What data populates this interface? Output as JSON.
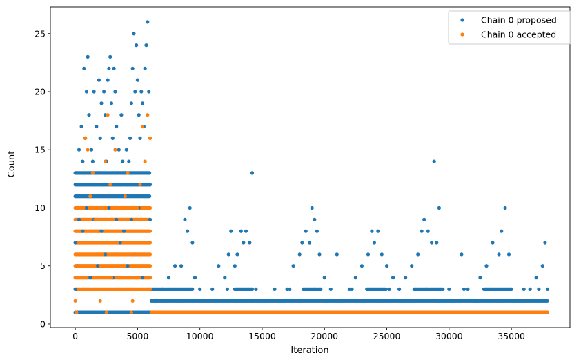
{
  "chart_data": {
    "type": "scatter",
    "title": "",
    "xlabel": "Iteration",
    "ylabel": "Count",
    "xlim": [
      -2000,
      39700
    ],
    "ylim": [
      -0.3,
      27.3
    ],
    "xticks": [
      0,
      5000,
      10000,
      15000,
      20000,
      25000,
      30000,
      35000
    ],
    "yticks": [
      0,
      5,
      10,
      15,
      20,
      25
    ],
    "legend_position": "top-right",
    "series": [
      {
        "name": "Chain 0 proposed",
        "color": "#1f77b4",
        "points": [
          [
            0,
            7
          ],
          [
            100,
            13
          ],
          [
            200,
            5
          ],
          [
            300,
            15
          ],
          [
            400,
            12
          ],
          [
            500,
            17
          ],
          [
            600,
            14
          ],
          [
            700,
            22
          ],
          [
            800,
            16
          ],
          [
            900,
            20
          ],
          [
            1000,
            23
          ],
          [
            1100,
            18
          ],
          [
            1200,
            11
          ],
          [
            1300,
            15
          ],
          [
            1400,
            14
          ],
          [
            1500,
            20
          ],
          [
            1600,
            12
          ],
          [
            1700,
            17
          ],
          [
            1800,
            13
          ],
          [
            1900,
            21
          ],
          [
            2000,
            16
          ],
          [
            2100,
            19
          ],
          [
            2200,
            12
          ],
          [
            2300,
            20
          ],
          [
            2400,
            18
          ],
          [
            2500,
            14
          ],
          [
            2600,
            21
          ],
          [
            2700,
            22
          ],
          [
            2800,
            23
          ],
          [
            2900,
            19
          ],
          [
            3000,
            16
          ],
          [
            3100,
            22
          ],
          [
            3200,
            20
          ],
          [
            3300,
            17
          ],
          [
            3400,
            13
          ],
          [
            3500,
            15
          ],
          [
            3600,
            12
          ],
          [
            3700,
            18
          ],
          [
            3800,
            14
          ],
          [
            3900,
            11
          ],
          [
            4000,
            13
          ],
          [
            4100,
            15
          ],
          [
            4200,
            12
          ],
          [
            4300,
            14
          ],
          [
            4400,
            16
          ],
          [
            4500,
            19
          ],
          [
            4600,
            22
          ],
          [
            4700,
            25
          ],
          [
            4800,
            20
          ],
          [
            4900,
            24
          ],
          [
            5000,
            21
          ],
          [
            5100,
            18
          ],
          [
            5200,
            16
          ],
          [
            5300,
            20
          ],
          [
            5400,
            19
          ],
          [
            5500,
            17
          ],
          [
            5600,
            22
          ],
          [
            5700,
            24
          ],
          [
            5800,
            26
          ],
          [
            5900,
            20
          ],
          [
            6000,
            12
          ],
          [
            0,
            3
          ],
          [
            300,
            9
          ],
          [
            600,
            8
          ],
          [
            900,
            10
          ],
          [
            1200,
            4
          ],
          [
            1500,
            9
          ],
          [
            1800,
            5
          ],
          [
            2100,
            8
          ],
          [
            2400,
            6
          ],
          [
            2700,
            10
          ],
          [
            3000,
            4
          ],
          [
            3300,
            9
          ],
          [
            3600,
            7
          ],
          [
            3900,
            8
          ],
          [
            4200,
            5
          ],
          [
            4500,
            9
          ],
          [
            4800,
            6
          ],
          [
            5100,
            10
          ],
          [
            5400,
            4
          ],
          [
            5700,
            11
          ],
          [
            6000,
            9
          ],
          [
            6500,
            2
          ],
          [
            7000,
            3
          ],
          [
            7500,
            4
          ],
          [
            8000,
            5
          ],
          [
            8500,
            5
          ],
          [
            8800,
            9
          ],
          [
            9000,
            8
          ],
          [
            9200,
            10
          ],
          [
            9400,
            7
          ],
          [
            9600,
            4
          ],
          [
            10000,
            3
          ],
          [
            10500,
            2
          ],
          [
            11000,
            3
          ],
          [
            11500,
            5
          ],
          [
            12000,
            4
          ],
          [
            12300,
            6
          ],
          [
            12500,
            8
          ],
          [
            12800,
            5
          ],
          [
            13000,
            6
          ],
          [
            13300,
            8
          ],
          [
            13500,
            7
          ],
          [
            13700,
            8
          ],
          [
            14000,
            7
          ],
          [
            14200,
            13
          ],
          [
            14500,
            3
          ],
          [
            15000,
            2
          ],
          [
            15500,
            2
          ],
          [
            16000,
            3
          ],
          [
            16500,
            2
          ],
          [
            17000,
            3
          ],
          [
            17500,
            5
          ],
          [
            18000,
            6
          ],
          [
            18200,
            7
          ],
          [
            18500,
            8
          ],
          [
            18800,
            7
          ],
          [
            19000,
            10
          ],
          [
            19200,
            9
          ],
          [
            19400,
            8
          ],
          [
            19600,
            6
          ],
          [
            20000,
            4
          ],
          [
            20500,
            3
          ],
          [
            21000,
            6
          ],
          [
            21500,
            2
          ],
          [
            22000,
            3
          ],
          [
            22500,
            4
          ],
          [
            23000,
            5
          ],
          [
            23500,
            6
          ],
          [
            23800,
            8
          ],
          [
            24000,
            7
          ],
          [
            24300,
            8
          ],
          [
            24600,
            6
          ],
          [
            25000,
            5
          ],
          [
            25500,
            4
          ],
          [
            26000,
            3
          ],
          [
            26500,
            4
          ],
          [
            27000,
            5
          ],
          [
            27500,
            6
          ],
          [
            27800,
            8
          ],
          [
            28000,
            9
          ],
          [
            28300,
            8
          ],
          [
            28600,
            7
          ],
          [
            28800,
            14
          ],
          [
            29000,
            7
          ],
          [
            29200,
            10
          ],
          [
            29500,
            3
          ],
          [
            30000,
            3
          ],
          [
            30500,
            2
          ],
          [
            31000,
            6
          ],
          [
            31500,
            3
          ],
          [
            32000,
            2
          ],
          [
            32500,
            4
          ],
          [
            33000,
            5
          ],
          [
            33500,
            7
          ],
          [
            34000,
            6
          ],
          [
            34200,
            8
          ],
          [
            34500,
            10
          ],
          [
            34800,
            6
          ],
          [
            35000,
            3
          ],
          [
            35500,
            2
          ],
          [
            36000,
            3
          ],
          [
            36500,
            3
          ],
          [
            37000,
            4
          ],
          [
            37500,
            5
          ],
          [
            37700,
            7
          ],
          [
            37900,
            3
          ],
          [
            7200,
            2
          ],
          [
            8200,
            2
          ],
          [
            9200,
            3
          ],
          [
            10200,
            2
          ],
          [
            11200,
            2
          ],
          [
            12200,
            3
          ],
          [
            13200,
            2
          ],
          [
            14200,
            2
          ],
          [
            15200,
            2
          ],
          [
            16200,
            2
          ],
          [
            17200,
            3
          ],
          [
            18200,
            2
          ],
          [
            19200,
            3
          ],
          [
            20200,
            2
          ],
          [
            21200,
            2
          ],
          [
            22200,
            3
          ],
          [
            23200,
            2
          ],
          [
            24200,
            2
          ],
          [
            25200,
            3
          ],
          [
            26200,
            2
          ],
          [
            27200,
            2
          ],
          [
            28200,
            3
          ],
          [
            29200,
            2
          ],
          [
            30200,
            2
          ],
          [
            31200,
            3
          ],
          [
            32200,
            2
          ],
          [
            33200,
            3
          ],
          [
            34200,
            2
          ],
          [
            35200,
            2
          ],
          [
            36200,
            2
          ],
          [
            37200,
            3
          ]
        ]
      },
      {
        "name": "Chain 0 accepted",
        "color": "#ff7f0e",
        "points": [
          [
            0,
            2
          ],
          [
            200,
            5
          ],
          [
            400,
            7
          ],
          [
            600,
            10
          ],
          [
            800,
            16
          ],
          [
            1000,
            15
          ],
          [
            1200,
            11
          ],
          [
            1400,
            13
          ],
          [
            1600,
            9
          ],
          [
            1800,
            8
          ],
          [
            2000,
            2
          ],
          [
            2200,
            6
          ],
          [
            2400,
            14
          ],
          [
            2600,
            18
          ],
          [
            2800,
            12
          ],
          [
            3000,
            10
          ],
          [
            3200,
            15
          ],
          [
            3400,
            7
          ],
          [
            3600,
            4
          ],
          [
            3800,
            9
          ],
          [
            4000,
            11
          ],
          [
            4200,
            13
          ],
          [
            4400,
            8
          ],
          [
            4600,
            2
          ],
          [
            4800,
            6
          ],
          [
            5000,
            10
          ],
          [
            5200,
            12
          ],
          [
            5400,
            17
          ],
          [
            5600,
            14
          ],
          [
            5800,
            18
          ],
          [
            6000,
            16
          ],
          [
            100,
            1
          ],
          [
            500,
            3
          ],
          [
            900,
            4
          ],
          [
            1300,
            5
          ],
          [
            1700,
            6
          ],
          [
            2100,
            3
          ],
          [
            2500,
            1
          ],
          [
            2900,
            4
          ],
          [
            3300,
            6
          ],
          [
            3700,
            5
          ],
          [
            4100,
            3
          ],
          [
            4500,
            1
          ],
          [
            4900,
            4
          ],
          [
            5300,
            6
          ],
          [
            5700,
            8
          ],
          [
            6000,
            3
          ]
        ]
      }
    ],
    "dense_bands": [
      {
        "series": 0,
        "y": 1,
        "x_start": 0,
        "x_end": 37900
      },
      {
        "series": 0,
        "y": 2,
        "x_start": 6100,
        "x_end": 37900
      },
      {
        "series": 0,
        "y": 3,
        "x_start": 6100,
        "x_end": 9400
      },
      {
        "series": 0,
        "y": 3,
        "x_start": 12800,
        "x_end": 14200
      },
      {
        "series": 0,
        "y": 3,
        "x_start": 18300,
        "x_end": 19700
      },
      {
        "series": 0,
        "y": 3,
        "x_start": 23400,
        "x_end": 25000
      },
      {
        "series": 0,
        "y": 3,
        "x_start": 27200,
        "x_end": 29400
      },
      {
        "series": 0,
        "y": 3,
        "x_start": 32800,
        "x_end": 35000
      },
      {
        "series": 0,
        "y": 11,
        "x_start": 0,
        "x_end": 6000
      },
      {
        "series": 0,
        "y": 12,
        "x_start": 0,
        "x_end": 6000
      },
      {
        "series": 0,
        "y": 13,
        "x_start": 0,
        "x_end": 6000
      },
      {
        "series": 1,
        "y": 1,
        "x_start": 6100,
        "x_end": 37900
      },
      {
        "series": 1,
        "y": 3,
        "x_start": 0,
        "x_end": 6000
      },
      {
        "series": 1,
        "y": 4,
        "x_start": 0,
        "x_end": 6000
      },
      {
        "series": 1,
        "y": 5,
        "x_start": 0,
        "x_end": 6000
      },
      {
        "series": 1,
        "y": 6,
        "x_start": 0,
        "x_end": 6000
      },
      {
        "series": 1,
        "y": 7,
        "x_start": 0,
        "x_end": 6000
      },
      {
        "series": 1,
        "y": 8,
        "x_start": 0,
        "x_end": 6000
      },
      {
        "series": 1,
        "y": 9,
        "x_start": 0,
        "x_end": 6000
      },
      {
        "series": 1,
        "y": 10,
        "x_start": 0,
        "x_end": 6000
      }
    ]
  }
}
